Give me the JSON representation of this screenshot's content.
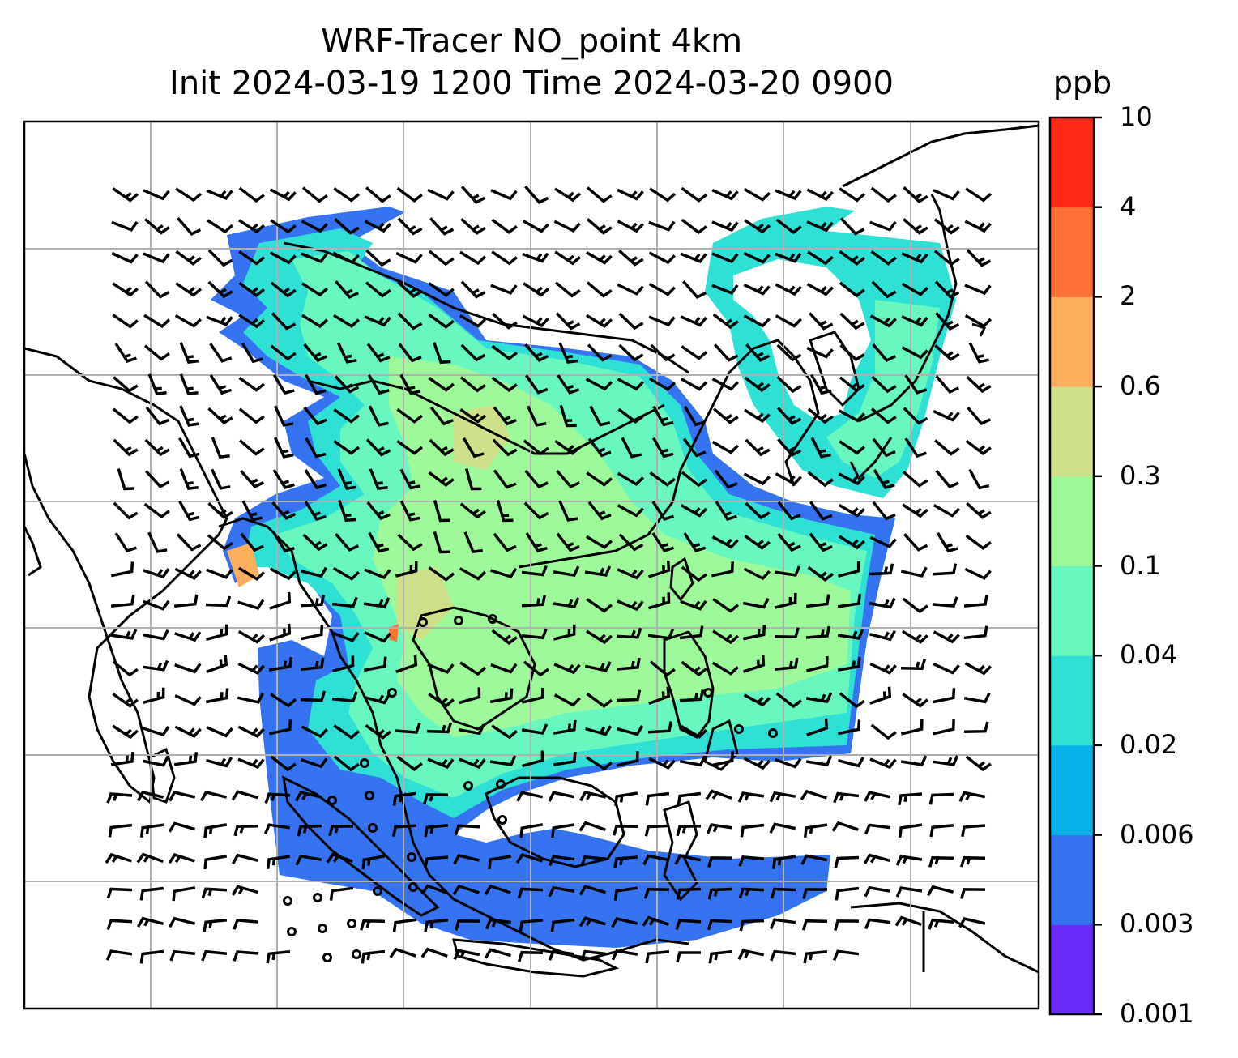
{
  "title_line1": "WRF-Tracer NO_point 4km",
  "title_line2": "Init 2024-03-19 1200 Time 2024-03-20 0900",
  "colorbar": {
    "unit": "ppb",
    "levels": [
      "0.001",
      "0.003",
      "0.006",
      "0.02",
      "0.04",
      "0.1",
      "0.3",
      "0.6",
      "2",
      "4",
      "10"
    ],
    "colors": [
      "#6a2bfa",
      "#3573f0",
      "#08b2e8",
      "#2fe0d5",
      "#69f7c0",
      "#9ef99a",
      "#cfe08a",
      "#fdae5d",
      "#fd7036",
      "#ff2a16"
    ]
  },
  "map_layers": {
    "gridlines": true,
    "coastlines": true,
    "wind_barbs": true,
    "calm_circles": true
  }
}
